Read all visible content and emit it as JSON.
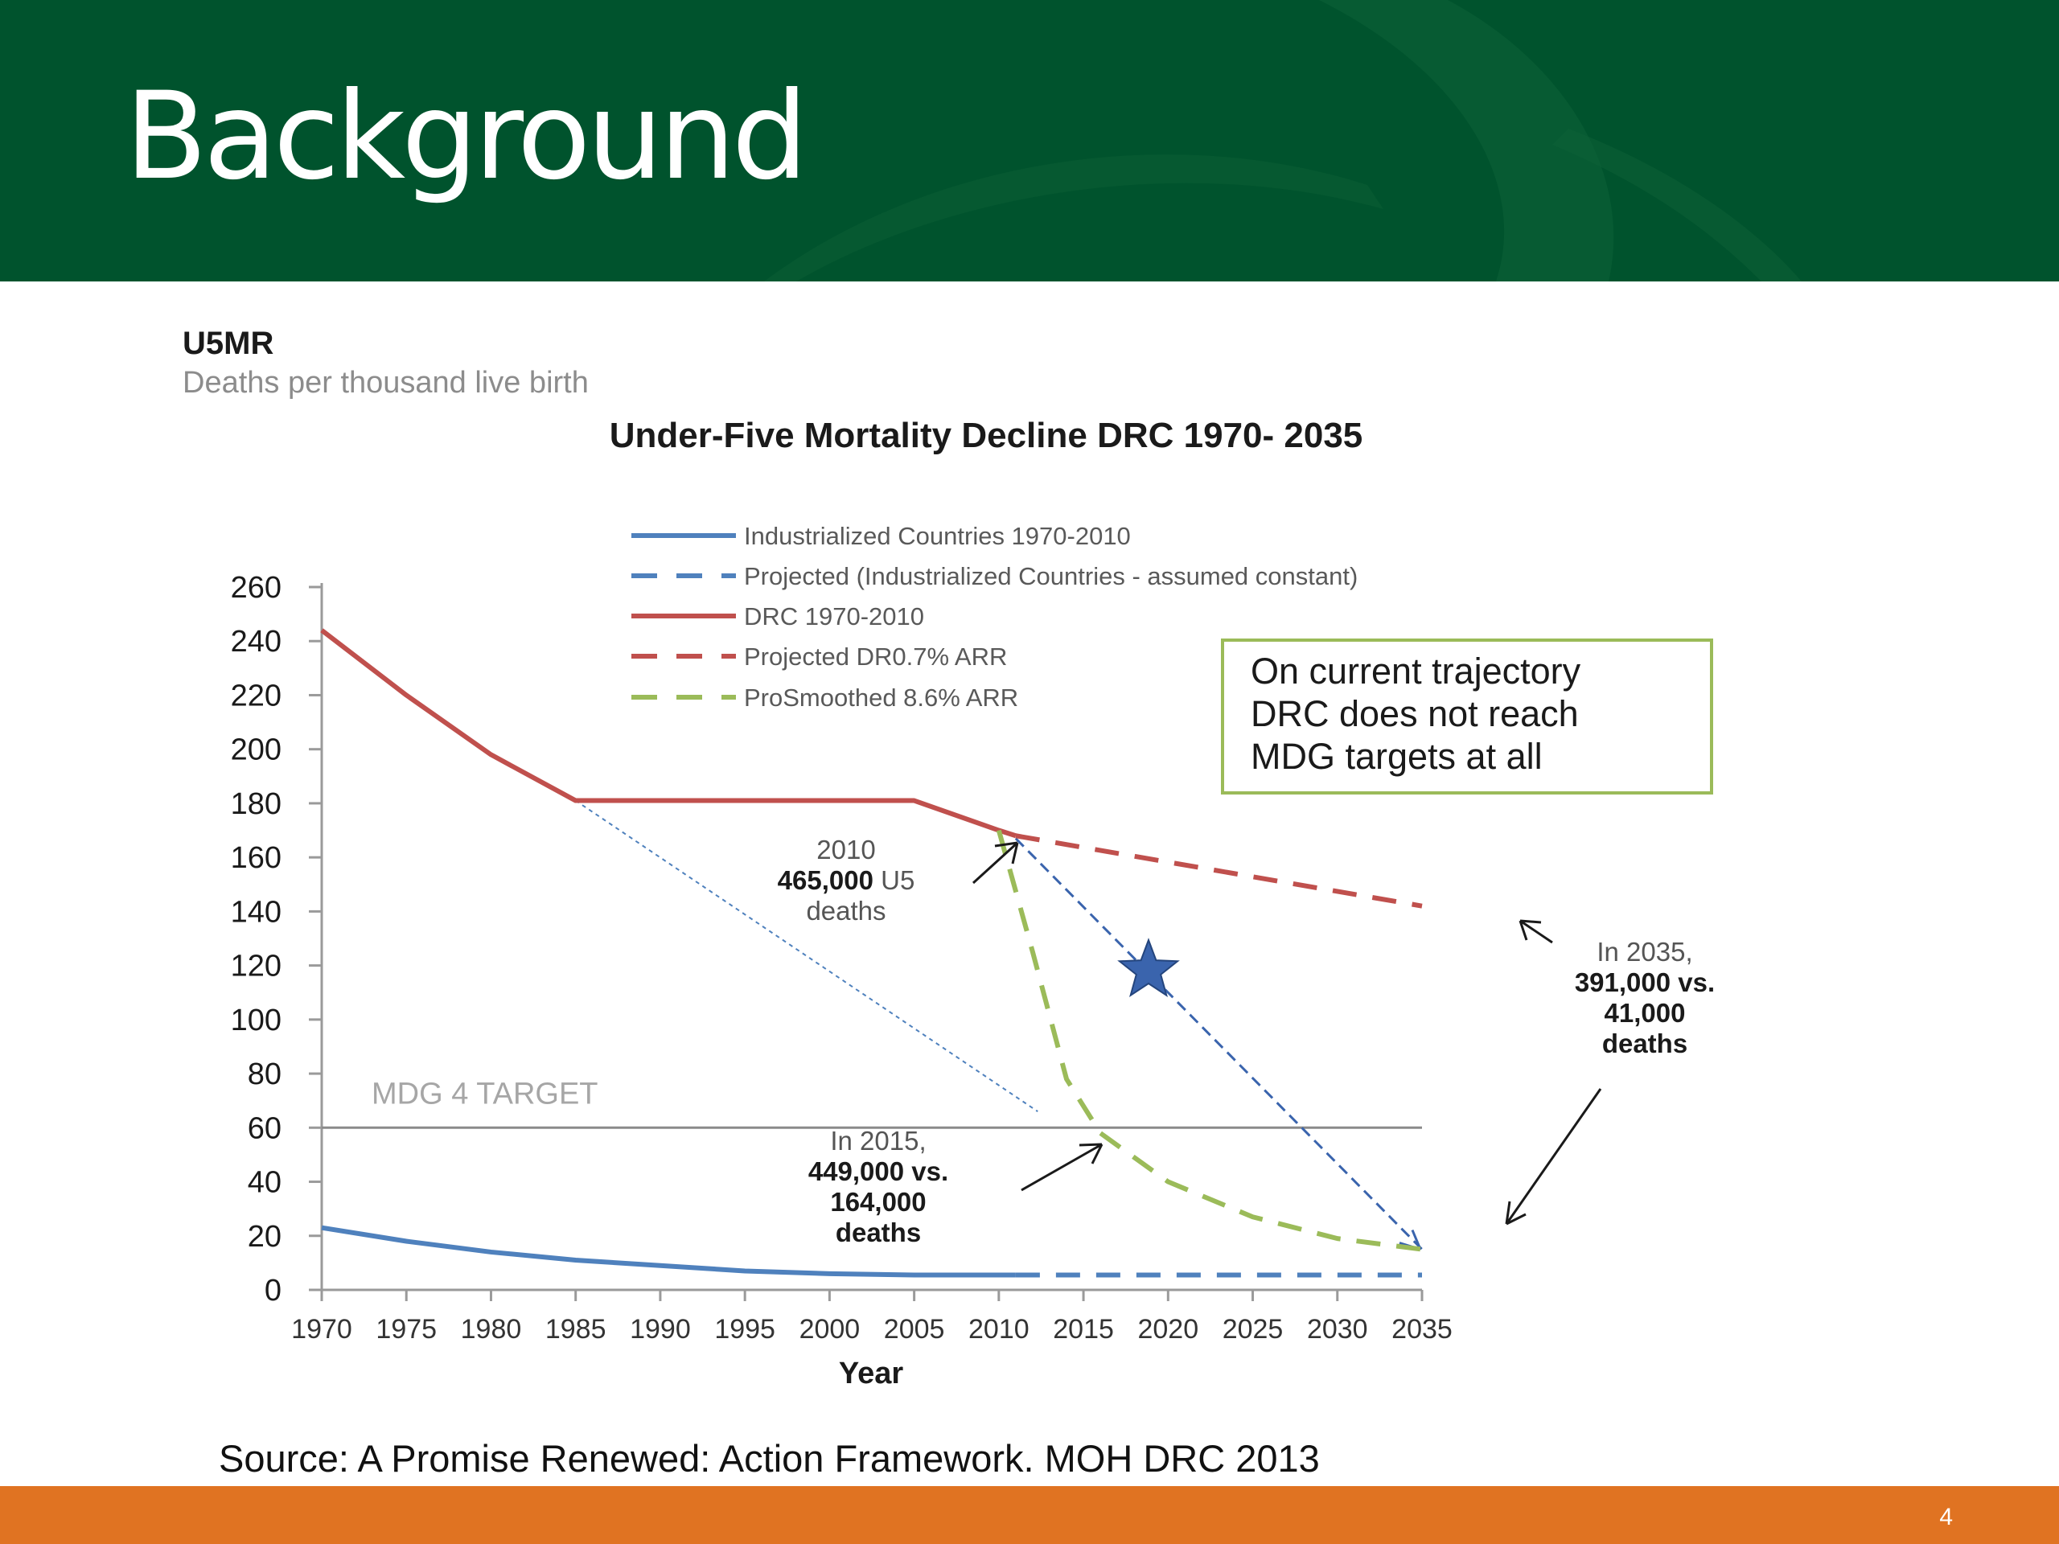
{
  "slide": {
    "title": "Background",
    "source": "Source:  A Promise Renewed: Action Framework. MOH DRC 2013",
    "page_number": "4"
  },
  "colors": {
    "header": "#00532d",
    "footer": "#e07322",
    "drc": "#c0504d",
    "industrialized": "#4f81bd",
    "smoothed": "#9bbb59",
    "callout_border": "#9bbb59",
    "star": "#3a64ad"
  },
  "chart_data": {
    "type": "line",
    "title": "Under-Five Mortality Decline DRC 1970- 2035",
    "y_title": "U5MR",
    "y_subtitle": "Deaths per thousand live birth",
    "xlabel": "Year",
    "ylabel": "",
    "xlim": [
      1970,
      2035
    ],
    "ylim": [
      0,
      260
    ],
    "x_ticks": [
      "1970",
      "1975",
      "1980",
      "1985",
      "1990",
      "1995",
      "2000",
      "2005",
      "2010",
      "2015",
      "2020",
      "2025",
      "2030",
      "2035"
    ],
    "y_ticks": [
      "0",
      "20",
      "40",
      "60",
      "80",
      "100",
      "120",
      "140",
      "160",
      "180",
      "200",
      "220",
      "240",
      "260"
    ],
    "series": [
      {
        "name": "Industrialized Countries 1970-2010",
        "style": "solid",
        "color": "#4f81bd",
        "x": [
          1970,
          1975,
          1980,
          1985,
          1990,
          1995,
          2000,
          2005,
          2010,
          2011
        ],
        "y": [
          23,
          18,
          14,
          11,
          9,
          7,
          6,
          5.5,
          5.5,
          5.5
        ]
      },
      {
        "name": "Projected (Industrialized Countries - assumed constant)",
        "style": "dashed",
        "color": "#4f81bd",
        "x": [
          2011,
          2035
        ],
        "y": [
          5.5,
          5.5
        ]
      },
      {
        "name": "DRC 1970-2010",
        "style": "solid",
        "color": "#c0504d",
        "x": [
          1970,
          1975,
          1980,
          1985,
          1990,
          1995,
          2000,
          2005,
          2010,
          2011
        ],
        "y": [
          244,
          220,
          198,
          181,
          181,
          181,
          181,
          181,
          170,
          168
        ]
      },
      {
        "name": "Projected DR0.7% ARR",
        "style": "dashed",
        "color": "#c0504d",
        "x": [
          2011,
          2035
        ],
        "y": [
          168,
          142
        ]
      },
      {
        "name": "ProSmoothed 8.6% ARR",
        "style": "dashed",
        "color": "#9bbb59",
        "x": [
          2010,
          2012,
          2014,
          2016,
          2020,
          2025,
          2030,
          2035
        ],
        "y": [
          170,
          125,
          78,
          58,
          40,
          27,
          19,
          15
        ]
      }
    ],
    "mdg_target": {
      "label": "MDG 4 TARGET",
      "value": 60
    },
    "legend_position": "top",
    "grid": false,
    "annotations": {
      "a2010": {
        "line1": "2010",
        "bold": "465,000",
        "rest": " U5",
        "line3": "deaths"
      },
      "a2015": {
        "line1": "In 2015,",
        "line2": "449,000 vs.",
        "line3": "164,000",
        "line4": "deaths"
      },
      "a2035": {
        "line1": "In 2035,",
        "line2": "391,000 vs.",
        "line3": "41,000",
        "line4": "deaths"
      },
      "callout": [
        "On current trajectory",
        "DRC does not reach",
        "MDG targets at all"
      ]
    }
  }
}
